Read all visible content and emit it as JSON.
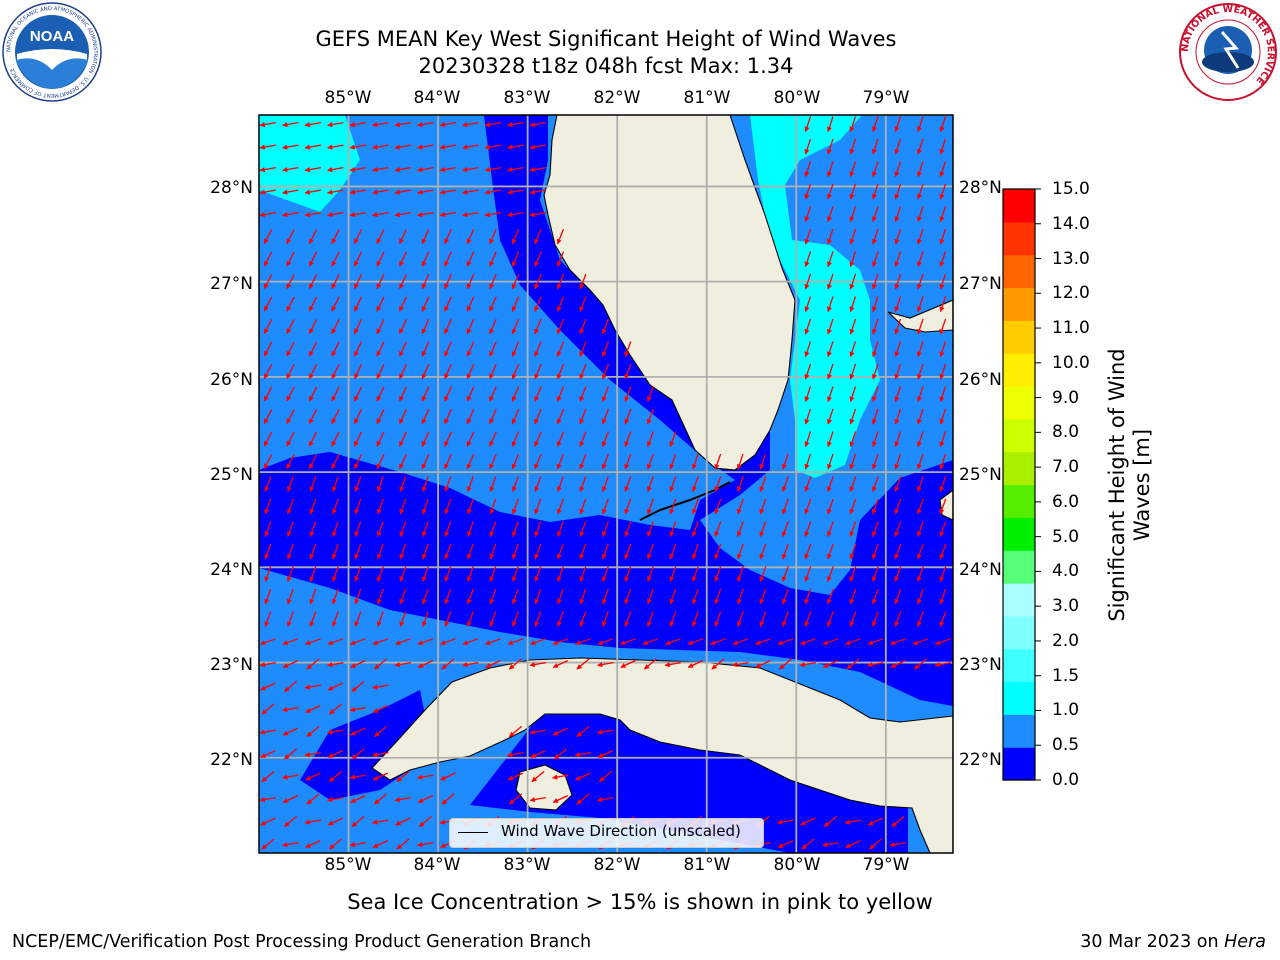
{
  "title": {
    "line1": "GEFS MEAN Key West Significant Height of Wind Waves",
    "line2": "20230328 t18z 048h fcst   Max: 1.34"
  },
  "map": {
    "lon_ticks": [
      "85°W",
      "84°W",
      "83°W",
      "82°W",
      "81°W",
      "80°W",
      "79°W"
    ],
    "lat_ticks": [
      "28°N",
      "27°N",
      "26°N",
      "25°N",
      "24°N",
      "23°N",
      "22°N"
    ],
    "lon_range": [
      -86.0,
      -78.25
    ],
    "lat_range": [
      21.0,
      28.75
    ],
    "arrow_color": "#ff0000",
    "land_color": "#efeedf",
    "gridline_color": "#b0b0b0",
    "legend_label": "Wind Wave Direction (unscaled)"
  },
  "colorbar": {
    "ticks": [
      "0.0",
      "0.5",
      "1.0",
      "1.5",
      "2.0",
      "3.0",
      "4.0",
      "5.0",
      "6.0",
      "7.0",
      "8.0",
      "9.0",
      "10.0",
      "11.0",
      "12.0",
      "13.0",
      "14.0",
      "15.0"
    ],
    "colors": [
      "#0000ff",
      "#1e8bff",
      "#00ffff",
      "#40ffff",
      "#7fffff",
      "#aaffff",
      "#55ff77",
      "#00ee00",
      "#55ee00",
      "#aaee00",
      "#ccff00",
      "#eeff00",
      "#ffee00",
      "#ffcc00",
      "#ff9900",
      "#ff6600",
      "#ff3300",
      "#ff0000"
    ],
    "label": "Significant Height of Wind Waves [m]"
  },
  "note": "Sea Ice Concentration > 15% is shown in pink to yellow",
  "footer": {
    "left": "NCEP/EMC/Verification Post Processing Product Generation Branch",
    "date": "30 Mar 2023 on ",
    "host": "Hera"
  },
  "logos": {
    "noaa_text": "NOAA",
    "noaa_ring": "NATIONAL OCEANIC AND ATMOSPHERIC ADMINISTRATION · U.S. DEPARTMENT OF COMMERCE",
    "nws_ring": "NATIONAL WEATHER SERVICE"
  }
}
